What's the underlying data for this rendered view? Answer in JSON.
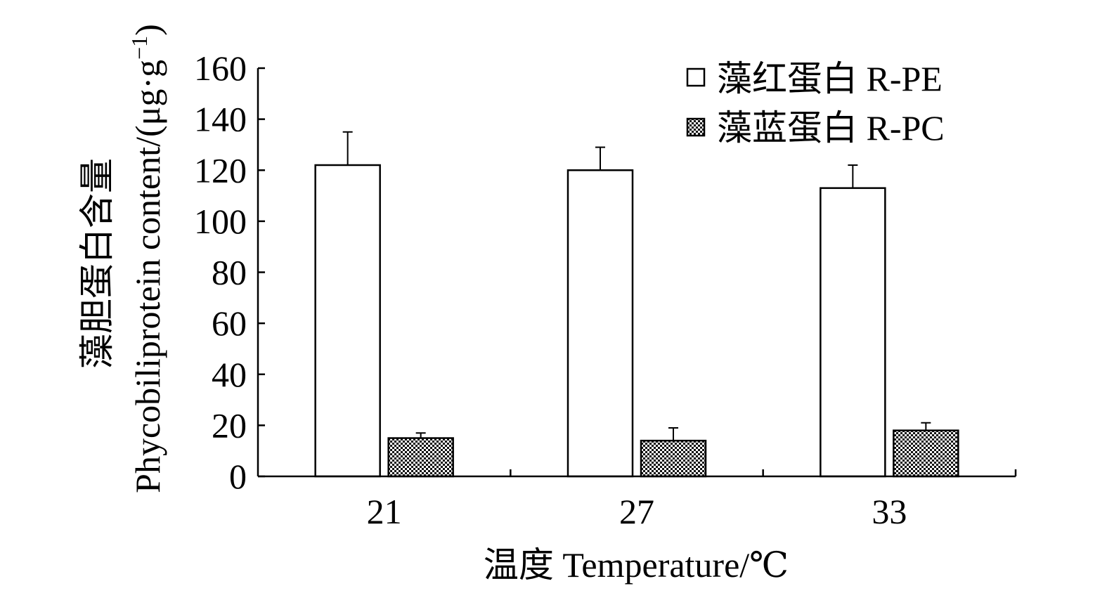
{
  "chart_data": {
    "type": "bar",
    "title": "",
    "xlabel": "温度 Temperature/℃",
    "ylabel_line1": "藻胆蛋白含量",
    "ylabel_line2": "Phycobiliprotein content/(μg·g−1)",
    "ylabel_unit_prefix": "Phycobiliprotein content/(μg·g",
    "ylabel_unit_exp": "−1",
    "ylabel_unit_suffix": ")",
    "categories": [
      "21",
      "27",
      "33"
    ],
    "ylim": [
      0,
      160
    ],
    "yticks": [
      0,
      20,
      40,
      60,
      80,
      100,
      120,
      140,
      160
    ],
    "grid": false,
    "legend_position": "top-right",
    "series": [
      {
        "name": "藻红蛋白 R-PE",
        "fill": "open",
        "values": [
          122,
          120,
          113
        ],
        "errors": [
          13,
          9,
          9
        ]
      },
      {
        "name": "藻蓝蛋白 R-PC",
        "fill": "checkered",
        "values": [
          15,
          14,
          18
        ],
        "errors": [
          2,
          5,
          3
        ]
      }
    ],
    "colors": {
      "axis": "#000000",
      "bar_fill": "#ffffff",
      "pattern_dark": "#000000",
      "pattern_light": "#ffffff"
    }
  }
}
